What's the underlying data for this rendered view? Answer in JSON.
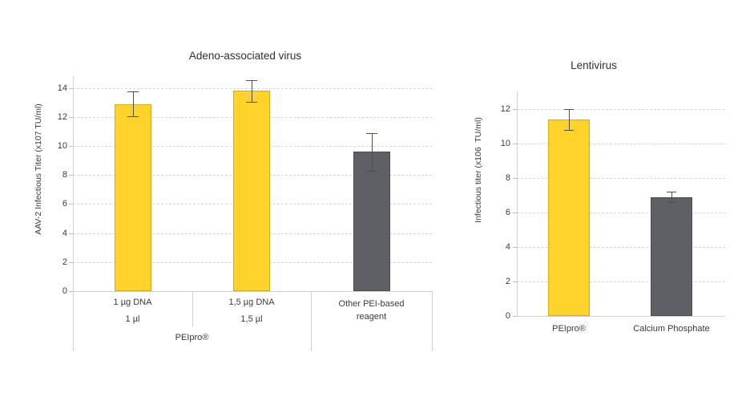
{
  "chart_data": [
    {
      "type": "bar",
      "title": "Adeno-associated virus",
      "ylabel": "AAV-2 Infectious Titer (x107 TU/ml)",
      "xlabel": "",
      "ylim": [
        0,
        14.8
      ],
      "yticks": [
        0,
        2,
        4,
        6,
        8,
        10,
        12,
        14
      ],
      "grid": "horizontal-dashed",
      "legend": "none",
      "categories": [
        [
          "1 µg DNA",
          "1 µl"
        ],
        [
          "1,5 µg DNA",
          "1,5 µl"
        ],
        [
          "Other PEI-based",
          "reagent"
        ]
      ],
      "group_label": {
        "label": "PEIpro®",
        "spans_categories": [
          0,
          1
        ]
      },
      "values": [
        12.9,
        13.8,
        9.6
      ],
      "error_bars": [
        0.85,
        0.75,
        1.3
      ],
      "bar_colors": [
        "#FFD32B",
        "#FFD32B",
        "#5F6066"
      ]
    },
    {
      "type": "bar",
      "title": "Lentivirus",
      "ylabel": "Infectious titer (x106  TU/ml)",
      "xlabel": "",
      "ylim": [
        0,
        13
      ],
      "yticks": [
        0,
        2,
        4,
        6,
        8,
        10,
        12
      ],
      "grid": "horizontal-dashed",
      "legend": "none",
      "categories": [
        "PEIpro®",
        "Calcium Phosphate"
      ],
      "values": [
        11.4,
        6.9
      ],
      "error_bars": [
        0.6,
        0.3
      ],
      "bar_colors": [
        "#FFD32B",
        "#5F6066"
      ]
    }
  ],
  "colors": {
    "background": "#ffffff",
    "bar_yellow": "#FFD32B",
    "bar_gray": "#5F6066",
    "bar_border": "rgba(0,0,0,0.18)",
    "gridline": "#d6d6d6",
    "axis_line": "#d0d0d0",
    "tick_mark": "#bdbdbd",
    "error_bar": "#4f5245",
    "text": "#3a3a3a"
  }
}
